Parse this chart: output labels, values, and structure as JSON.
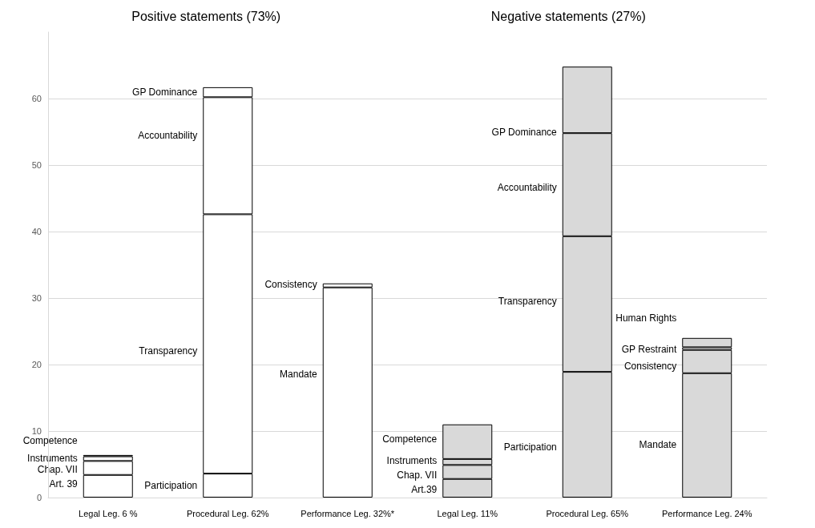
{
  "chart_data": {
    "type": "bar",
    "stacked": true,
    "grid": "y",
    "categories": [
      "Legal Leg. 6 %",
      "Procedural Leg. 62%",
      "Performance Leg. 32%*",
      "Legal Leg. 11%",
      "Procedural Leg. 65%",
      "Performance Leg. 24%"
    ],
    "ylim": [
      0,
      70
    ],
    "yticks": [
      0,
      10,
      20,
      30,
      40,
      50,
      60
    ],
    "series": [
      {
        "colors": [
          "#ffffff",
          "#ffffff",
          "#ffffff",
          "#d9d9d9",
          "#d9d9d9",
          "#d9d9d9"
        ],
        "values": [
          3.4,
          3.6,
          31.6,
          2.8,
          18.9,
          18.7
        ]
      },
      {
        "colors": [
          "#ffffff",
          "#ffffff",
          "#ffffff",
          "#d9d9d9",
          "#d9d9d9",
          "#d9d9d9"
        ],
        "values": [
          2.1,
          39.0,
          0.6,
          2.1,
          20.4,
          3.5
        ]
      },
      {
        "colors": [
          "#ffffff",
          "#ffffff",
          "#ffffff",
          "#d9d9d9",
          "#d9d9d9",
          "#d9d9d9"
        ],
        "values": [
          0.7,
          17.6,
          null,
          0.9,
          15.5,
          0.4
        ]
      },
      {
        "colors": [
          "#ffffff",
          "#ffffff",
          "#ffffff",
          "#d9d9d9",
          "#d9d9d9",
          "#d9d9d9"
        ],
        "values": [
          0.2,
          1.5,
          null,
          5.2,
          10.0,
          1.4
        ]
      }
    ],
    "annotations": [
      "Positive statements (73%)",
      "Negative statements (27%)",
      "Art. 39",
      "Chap. VII",
      "Instruments",
      "Competence",
      "Participation",
      "Transparency",
      "Accountability",
      "GP Dominance",
      "Mandate",
      "Consistency",
      "Art.39",
      "Chap. VII",
      "Instruments",
      "Competence",
      "Participation",
      "Transparency",
      "Accountability",
      "GP Dominance",
      "Mandate",
      "Consistency",
      "GP Restraint",
      "Human Rights"
    ]
  }
}
